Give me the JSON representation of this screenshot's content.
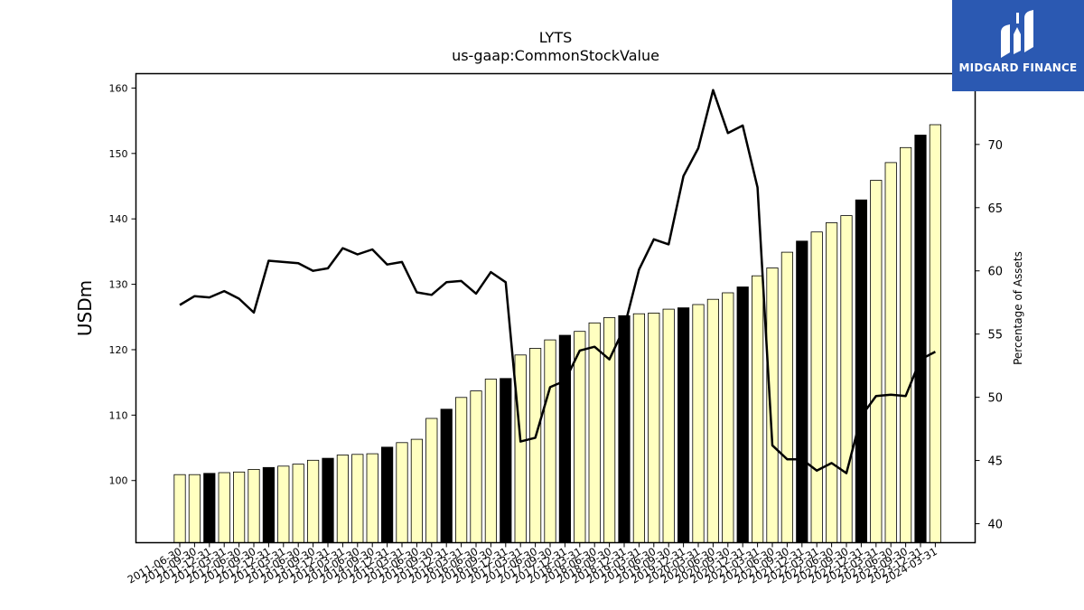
{
  "logo": {
    "text": "MIDGARD FINANCE"
  },
  "chart_data": {
    "type": "bar",
    "title": "LYTS",
    "subtitle": "us-gaap:CommonStockValue",
    "ylabel": "USDm",
    "y2label": "Percentage of Assets",
    "ylim": [
      90.5,
      162.2
    ],
    "y2lim": [
      38.5,
      75.6
    ],
    "yticks": [
      100,
      110,
      120,
      130,
      140,
      150,
      160
    ],
    "y2ticks": [
      40,
      45,
      50,
      55,
      60,
      65,
      70
    ],
    "colors": {
      "bar": "#ffffc0",
      "bar_highlight": "#000000",
      "line": "#000000"
    },
    "categories": [
      "2011-06-30",
      "2011-09-30",
      "2011-12-31",
      "2012-03-31",
      "2012-06-30",
      "2012-09-30",
      "2012-12-31",
      "2013-03-31",
      "2013-06-30",
      "2013-09-30",
      "2013-12-31",
      "2014-03-31",
      "2014-06-30",
      "2014-09-30",
      "2014-12-31",
      "2015-03-31",
      "2015-06-30",
      "2015-09-30",
      "2015-12-31",
      "2016-03-31",
      "2016-06-30",
      "2016-09-30",
      "2016-12-31",
      "2017-03-31",
      "2017-06-30",
      "2017-09-30",
      "2017-12-31",
      "2018-03-31",
      "2018-06-30",
      "2018-09-30",
      "2018-12-31",
      "2019-03-31",
      "2019-06-30",
      "2019-09-30",
      "2019-12-31",
      "2020-03-31",
      "2020-06-30",
      "2020-09-30",
      "2020-12-31",
      "2021-03-31",
      "2021-06-30",
      "2021-09-30",
      "2021-12-31",
      "2022-03-31",
      "2022-06-30",
      "2022-09-30",
      "2022-12-31",
      "2023-03-31",
      "2023-06-30",
      "2023-09-30",
      "2023-12-31",
      "2024-03-31"
    ],
    "highlight_indices": [
      2,
      6,
      10,
      14,
      18,
      22,
      26,
      30,
      34,
      38,
      42,
      46,
      50
    ],
    "series": [
      {
        "type": "bar",
        "axis": "left",
        "values": [
          100.9,
          100.9,
          101.1,
          101.2,
          101.3,
          101.7,
          102.0,
          102.2,
          102.5,
          103.1,
          103.4,
          103.9,
          104.0,
          104.1,
          105.1,
          105.8,
          106.3,
          109.5,
          110.9,
          112.7,
          113.7,
          115.5,
          115.6,
          119.2,
          120.2,
          121.5,
          122.2,
          122.8,
          124.1,
          124.9,
          125.2,
          125.5,
          125.6,
          126.2,
          126.4,
          126.9,
          127.7,
          128.7,
          129.6,
          131.3,
          132.5,
          134.9,
          136.6,
          138.0,
          139.4,
          140.5,
          142.9,
          145.9,
          148.6,
          150.9,
          152.8,
          154.4
        ]
      },
      {
        "type": "line",
        "axis": "right",
        "values": [
          57.3,
          58.0,
          57.9,
          58.4,
          57.8,
          56.7,
          60.8,
          60.7,
          60.6,
          60.0,
          60.2,
          61.8,
          61.3,
          61.7,
          60.5,
          60.7,
          58.3,
          58.1,
          59.1,
          59.2,
          58.2,
          59.9,
          59.1,
          46.5,
          46.8,
          50.8,
          51.3,
          53.7,
          54.0,
          53.0,
          55.5,
          60.1,
          62.5,
          62.1,
          67.5,
          69.7,
          74.3,
          70.9,
          71.5,
          66.6,
          46.2,
          45.1,
          45.1,
          44.2,
          44.8,
          44.0,
          48.5,
          50.1,
          50.2,
          50.1,
          53.0,
          53.6
        ]
      }
    ]
  }
}
